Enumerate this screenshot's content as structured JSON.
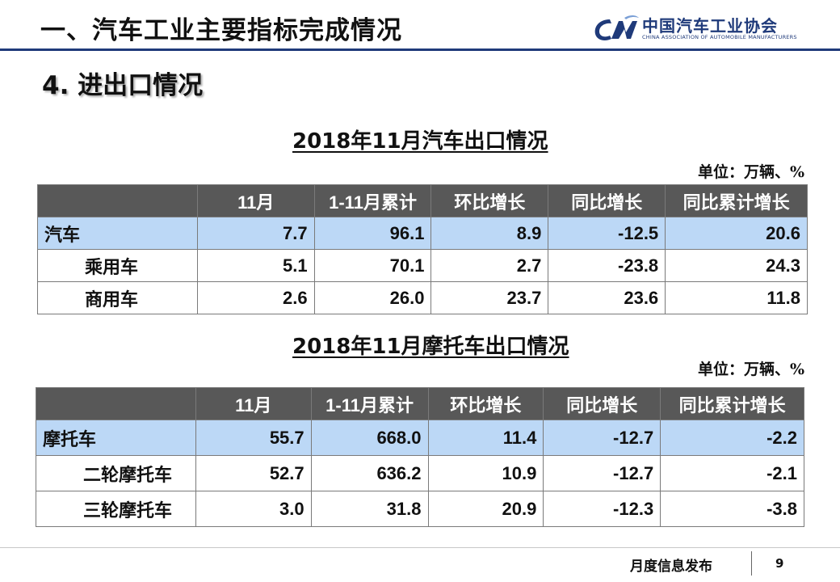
{
  "header": {
    "title": "一、汽车工业主要指标完成情况",
    "logo_cn": "中国汽车工业协会",
    "logo_en": "CHINA ASSOCIATION OF AUTOMOBILE MANUFACTURERS",
    "brand_color": "#1f3a7a"
  },
  "section_heading": "4. 进出口情况",
  "auto_table": {
    "title": "2018年11月汽车出口情况",
    "unit": "单位：万辆、%",
    "columns": [
      "",
      "11月",
      "1-11月累计",
      "环比增长",
      "同比增长",
      "同比累计增长"
    ],
    "rows": [
      [
        "汽车",
        "7.7",
        "96.1",
        "8.9",
        "-12.5",
        "20.6"
      ],
      [
        "乘用车",
        "5.1",
        "70.1",
        "2.7",
        "-23.8",
        "24.3"
      ],
      [
        "商用车",
        "2.6",
        "26.0",
        "23.7",
        "23.6",
        "11.8"
      ]
    ]
  },
  "moto_table": {
    "title": "2018年11月摩托车出口情况",
    "unit": "单位：万辆、%",
    "columns": [
      "",
      "11月",
      "1-11月累计",
      "环比增长",
      "同比增长",
      "同比累计增长"
    ],
    "rows": [
      [
        "摩托车",
        "55.7",
        "668.0",
        "11.4",
        "-12.7",
        "-2.2"
      ],
      [
        "二轮摩托车",
        "52.7",
        "636.2",
        "10.9",
        "-12.7",
        "-2.1"
      ],
      [
        "三轮摩托车",
        "3.0",
        "31.8",
        "20.9",
        "-12.3",
        "-3.8"
      ]
    ]
  },
  "footer": {
    "label": "月度信息发布",
    "page": "9"
  },
  "colors": {
    "header_bg": "#585858",
    "highlight_row": "#bcd8f6"
  }
}
